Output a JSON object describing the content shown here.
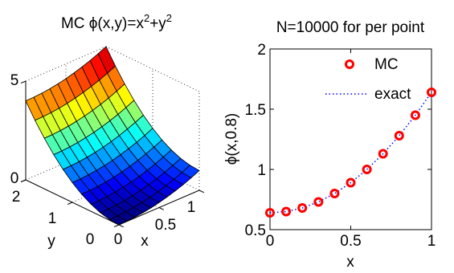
{
  "chart_data": [
    {
      "type": "surface",
      "title": "MC ϕ(x,y)=x²+y²",
      "title_parts": {
        "prefix": "MC ϕ(x,y)=x",
        "sup1": "2",
        "mid": "+y",
        "sup2": "2"
      },
      "xlabel": "x",
      "ylabel": "y",
      "xlim": [
        0,
        1
      ],
      "ylim": [
        0,
        2
      ],
      "zlim": [
        0,
        5
      ],
      "xticks": [
        "0",
        "0.5",
        "1"
      ],
      "yticks": [
        "0",
        "1",
        "2"
      ],
      "zticks": [
        "0",
        "5"
      ],
      "x": [
        0,
        0.1,
        0.2,
        0.3,
        0.4,
        0.5,
        0.6,
        0.7,
        0.8,
        0.9,
        1.0
      ],
      "y": [
        0,
        0.2,
        0.4,
        0.6,
        0.8,
        1.0,
        1.2,
        1.4,
        1.6,
        1.8,
        2.0
      ],
      "function": "x^2+y^2",
      "colormap": "jet",
      "grid": true
    },
    {
      "type": "line",
      "title": "N=10000 for per point",
      "xlabel": "x",
      "ylabel": "ϕ(x,0.8)",
      "xlim": [
        0,
        1
      ],
      "ylim": [
        0.5,
        2
      ],
      "xticks": [
        "0",
        "0.5",
        "1"
      ],
      "yticks": [
        "0.5",
        "1",
        "1.5",
        "2"
      ],
      "legend": {
        "position": "top-right"
      },
      "series": [
        {
          "name": "MC",
          "style": "markers",
          "color": "#ff0000",
          "x": [
            0,
            0.1,
            0.2,
            0.3,
            0.4,
            0.5,
            0.6,
            0.7,
            0.8,
            0.9,
            1.0
          ],
          "values": [
            0.64,
            0.65,
            0.68,
            0.73,
            0.8,
            0.89,
            1.0,
            1.13,
            1.28,
            1.45,
            1.64
          ]
        },
        {
          "name": "exact",
          "style": "dotted",
          "color": "#0000ff",
          "x": [
            0,
            0.1,
            0.2,
            0.3,
            0.4,
            0.5,
            0.6,
            0.7,
            0.8,
            0.9,
            1.0
          ],
          "values": [
            0.64,
            0.65,
            0.68,
            0.73,
            0.8,
            0.89,
            1.0,
            1.13,
            1.28,
            1.45,
            1.64
          ]
        }
      ]
    }
  ]
}
